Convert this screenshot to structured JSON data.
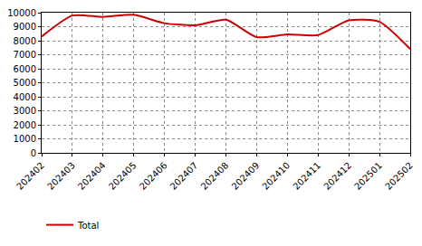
{
  "chart_data": {
    "type": "line",
    "categories": [
      "202402",
      "202403",
      "202404",
      "202405",
      "202406",
      "202407",
      "202408",
      "202409",
      "202410",
      "202411",
      "202412",
      "202501",
      "202502"
    ],
    "series": [
      {
        "name": "Total",
        "color": "#cc0000",
        "values": [
          8300,
          9800,
          9700,
          9850,
          9250,
          9100,
          9500,
          8250,
          8450,
          8400,
          9450,
          9350,
          7400
        ]
      }
    ],
    "ylim": [
      0,
      10000
    ],
    "yticks": [
      0,
      1000,
      2000,
      3000,
      4000,
      5000,
      6000,
      7000,
      8000,
      9000,
      10000
    ],
    "grid": true,
    "legend": "bottom"
  }
}
